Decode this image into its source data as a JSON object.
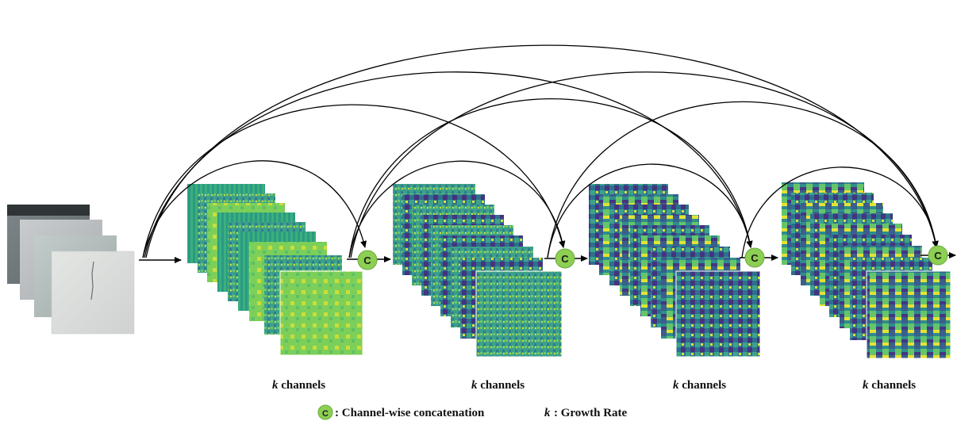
{
  "diagram": {
    "block_labels": [
      {
        "k": "k",
        "text": "channels"
      },
      {
        "k": "k",
        "text": "channels"
      },
      {
        "k": "k",
        "text": "channels"
      },
      {
        "k": "k",
        "text": "channels"
      }
    ],
    "concat_symbol": "C",
    "legend": {
      "concat_symbol": "C",
      "concat_text": ": Channel-wise concatenation",
      "k_symbol": "k",
      "k_text": ": Growth Rate"
    },
    "colors": {
      "concat_node": "#8ccf52",
      "arrow": "#000000",
      "viridis_dark": "#3b2a6f",
      "viridis_mid": "#2a8c8a",
      "viridis_bright": "#e8e33a"
    }
  }
}
